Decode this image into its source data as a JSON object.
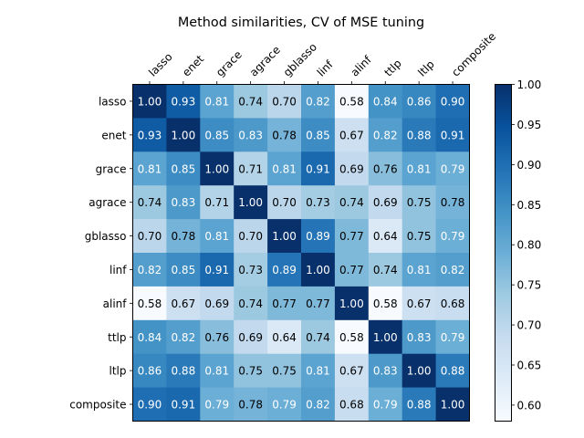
{
  "chart_data": {
    "type": "heatmap",
    "title": "Method similarities, CV of MSE tuning",
    "xlabel": "",
    "ylabel": "",
    "labels": [
      "lasso",
      "enet",
      "grace",
      "agrace",
      "gblasso",
      "linf",
      "alinf",
      "ttlp",
      "ltlp",
      "composite"
    ],
    "values": [
      [
        1.0,
        0.93,
        0.81,
        0.74,
        0.7,
        0.82,
        0.58,
        0.84,
        0.86,
        0.9
      ],
      [
        0.93,
        1.0,
        0.85,
        0.83,
        0.78,
        0.85,
        0.67,
        0.82,
        0.88,
        0.91
      ],
      [
        0.81,
        0.85,
        1.0,
        0.71,
        0.81,
        0.91,
        0.69,
        0.76,
        0.81,
        0.79
      ],
      [
        0.74,
        0.83,
        0.71,
        1.0,
        0.7,
        0.73,
        0.74,
        0.69,
        0.75,
        0.78
      ],
      [
        0.7,
        0.78,
        0.81,
        0.7,
        1.0,
        0.89,
        0.77,
        0.64,
        0.75,
        0.79
      ],
      [
        0.82,
        0.85,
        0.91,
        0.73,
        0.89,
        1.0,
        0.77,
        0.74,
        0.81,
        0.82
      ],
      [
        0.58,
        0.67,
        0.69,
        0.74,
        0.77,
        0.77,
        1.0,
        0.58,
        0.67,
        0.68
      ],
      [
        0.84,
        0.82,
        0.76,
        0.69,
        0.64,
        0.74,
        0.58,
        1.0,
        0.83,
        0.79
      ],
      [
        0.86,
        0.88,
        0.81,
        0.75,
        0.75,
        0.81,
        0.67,
        0.83,
        1.0,
        0.88
      ],
      [
        0.9,
        0.91,
        0.79,
        0.78,
        0.79,
        0.82,
        0.68,
        0.79,
        0.88,
        1.0
      ]
    ],
    "value_format": "0.00",
    "colormap": "Blues",
    "color_range": [
      0.58,
      1.0
    ],
    "colorbar": {
      "ticks": [
        0.6,
        0.65,
        0.7,
        0.75,
        0.8,
        0.85,
        0.9,
        0.95,
        1.0
      ],
      "placement": "right"
    },
    "x_tick_position": "top",
    "grid": false,
    "cmap_stops": [
      "#f7fbff",
      "#deebf7",
      "#c6dbef",
      "#9ecae1",
      "#6baed6",
      "#4292c6",
      "#2171b5",
      "#08519c",
      "#08306b"
    ]
  }
}
